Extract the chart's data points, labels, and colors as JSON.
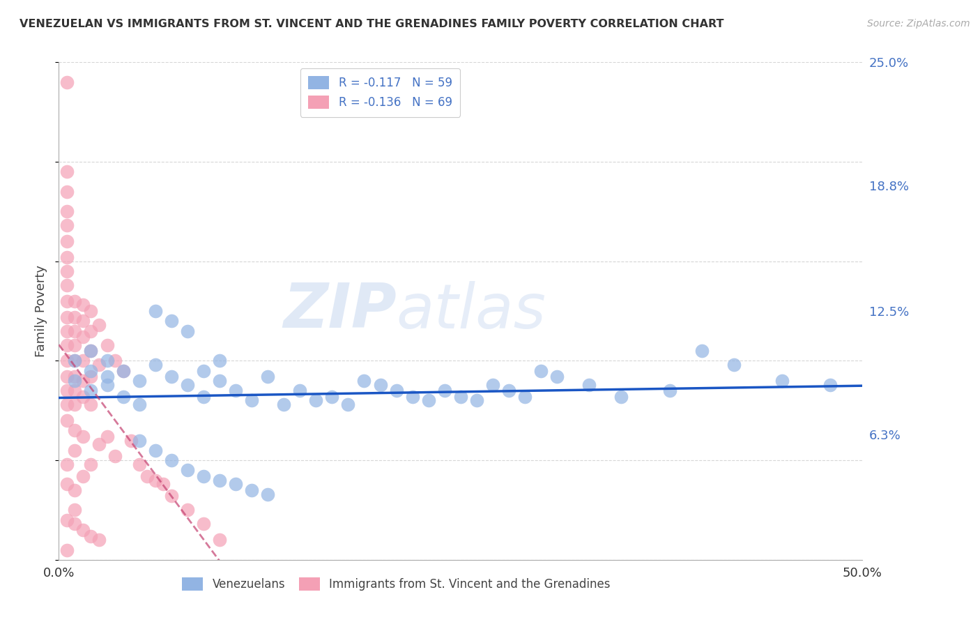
{
  "title": "VENEZUELAN VS IMMIGRANTS FROM ST. VINCENT AND THE GRENADINES FAMILY POVERTY CORRELATION CHART",
  "source": "Source: ZipAtlas.com",
  "ylabel": "Family Poverty",
  "xlabel": "",
  "xlim": [
    0.0,
    0.5
  ],
  "ylim": [
    0.0,
    0.25
  ],
  "blue_R": -0.117,
  "blue_N": 59,
  "pink_R": -0.136,
  "pink_N": 69,
  "blue_color": "#92b4e3",
  "pink_color": "#f4a0b5",
  "blue_line_color": "#1a56c4",
  "pink_line_color": "#c44070",
  "pink_line_style": "--",
  "watermark_zip": "ZIP",
  "watermark_atlas": "atlas",
  "legend_label_blue": "Venezuelans",
  "legend_label_pink": "Immigrants from St. Vincent and the Grenadines",
  "blue_x": [
    0.01,
    0.01,
    0.02,
    0.02,
    0.02,
    0.03,
    0.03,
    0.03,
    0.04,
    0.04,
    0.05,
    0.05,
    0.06,
    0.06,
    0.07,
    0.07,
    0.08,
    0.08,
    0.09,
    0.09,
    0.1,
    0.1,
    0.11,
    0.12,
    0.13,
    0.14,
    0.15,
    0.16,
    0.17,
    0.18,
    0.19,
    0.2,
    0.21,
    0.22,
    0.23,
    0.24,
    0.25,
    0.26,
    0.27,
    0.28,
    0.29,
    0.3,
    0.31,
    0.33,
    0.35,
    0.38,
    0.4,
    0.42,
    0.45,
    0.48,
    0.05,
    0.06,
    0.07,
    0.08,
    0.09,
    0.1,
    0.11,
    0.12,
    0.13
  ],
  "blue_y": [
    0.09,
    0.1,
    0.085,
    0.095,
    0.105,
    0.088,
    0.092,
    0.1,
    0.082,
    0.095,
    0.078,
    0.09,
    0.125,
    0.098,
    0.12,
    0.092,
    0.115,
    0.088,
    0.095,
    0.082,
    0.09,
    0.1,
    0.085,
    0.08,
    0.092,
    0.078,
    0.085,
    0.08,
    0.082,
    0.078,
    0.09,
    0.088,
    0.085,
    0.082,
    0.08,
    0.085,
    0.082,
    0.08,
    0.088,
    0.085,
    0.082,
    0.095,
    0.092,
    0.088,
    0.082,
    0.085,
    0.105,
    0.098,
    0.09,
    0.088,
    0.06,
    0.055,
    0.05,
    0.045,
    0.042,
    0.04,
    0.038,
    0.035,
    0.033
  ],
  "pink_x": [
    0.005,
    0.005,
    0.005,
    0.005,
    0.005,
    0.005,
    0.005,
    0.005,
    0.005,
    0.005,
    0.005,
    0.005,
    0.005,
    0.005,
    0.005,
    0.005,
    0.005,
    0.005,
    0.01,
    0.01,
    0.01,
    0.01,
    0.01,
    0.01,
    0.01,
    0.01,
    0.01,
    0.01,
    0.01,
    0.015,
    0.015,
    0.015,
    0.015,
    0.015,
    0.015,
    0.015,
    0.015,
    0.02,
    0.02,
    0.02,
    0.02,
    0.02,
    0.02,
    0.025,
    0.025,
    0.025,
    0.03,
    0.03,
    0.035,
    0.035,
    0.04,
    0.045,
    0.05,
    0.055,
    0.06,
    0.065,
    0.07,
    0.08,
    0.09,
    0.1,
    0.005,
    0.005,
    0.005,
    0.01,
    0.01,
    0.015,
    0.02,
    0.025,
    0.005
  ],
  "pink_y": [
    0.24,
    0.195,
    0.185,
    0.175,
    0.168,
    0.16,
    0.152,
    0.145,
    0.138,
    0.13,
    0.122,
    0.115,
    0.108,
    0.1,
    0.092,
    0.085,
    0.078,
    0.07,
    0.13,
    0.122,
    0.115,
    0.108,
    0.1,
    0.092,
    0.085,
    0.078,
    0.065,
    0.055,
    0.035,
    0.128,
    0.12,
    0.112,
    0.1,
    0.09,
    0.082,
    0.062,
    0.042,
    0.125,
    0.115,
    0.105,
    0.092,
    0.078,
    0.048,
    0.118,
    0.098,
    0.058,
    0.108,
    0.062,
    0.1,
    0.052,
    0.095,
    0.06,
    0.048,
    0.042,
    0.04,
    0.038,
    0.032,
    0.025,
    0.018,
    0.01,
    0.048,
    0.038,
    0.02,
    0.025,
    0.018,
    0.015,
    0.012,
    0.01,
    0.005
  ]
}
